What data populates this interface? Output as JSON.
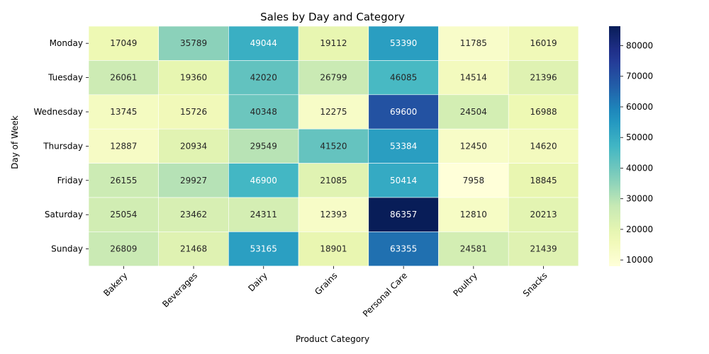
{
  "chart_data": {
    "type": "heatmap",
    "title": "Sales by Day and Category",
    "xlabel": "Product Category",
    "ylabel": "Day of Week",
    "x_categories": [
      "Bakery",
      "Beverages",
      "Dairy",
      "Grains",
      "Personal Care",
      "Poultry",
      "Snacks"
    ],
    "y_categories": [
      "Monday",
      "Tuesday",
      "Wednesday",
      "Thursday",
      "Friday",
      "Saturday",
      "Sunday"
    ],
    "values": [
      [
        17049,
        35789,
        49044,
        19112,
        53390,
        11785,
        16019
      ],
      [
        26061,
        19360,
        42020,
        26799,
        46085,
        14514,
        21396
      ],
      [
        13745,
        15726,
        40348,
        12275,
        69600,
        24504,
        16988
      ],
      [
        12887,
        20934,
        29549,
        41520,
        53384,
        12450,
        14620
      ],
      [
        26155,
        29927,
        46900,
        21085,
        50414,
        7958,
        18845
      ],
      [
        25054,
        23462,
        24311,
        12393,
        86357,
        12810,
        20213
      ],
      [
        26809,
        21468,
        53165,
        18901,
        63355,
        24581,
        21439
      ]
    ],
    "colormap": "YlGnBu",
    "colorbar": {
      "min": 7958,
      "max": 86357,
      "ticks": [
        10000,
        20000,
        30000,
        40000,
        50000,
        60000,
        70000,
        80000
      ]
    },
    "annotations": true,
    "grid": false
  }
}
